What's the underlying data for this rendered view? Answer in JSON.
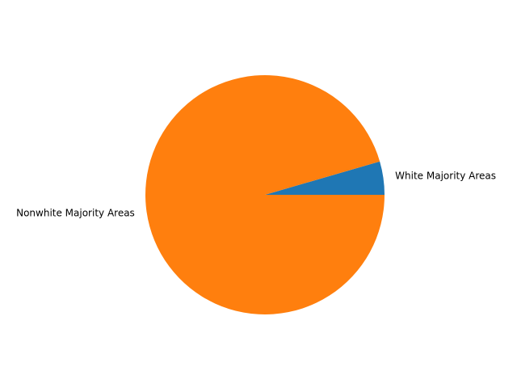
{
  "chart_data": {
    "type": "pie",
    "title": "",
    "slices": [
      {
        "label": "White Majority Areas",
        "value": 4.5,
        "color": "#1f77b4"
      },
      {
        "label": "Nonwhite Majority Areas",
        "value": 95.5,
        "color": "#ff7f0e"
      }
    ],
    "start_angle_deg": 0,
    "direction": "counterclockwise",
    "legend": "none",
    "grid": false
  }
}
